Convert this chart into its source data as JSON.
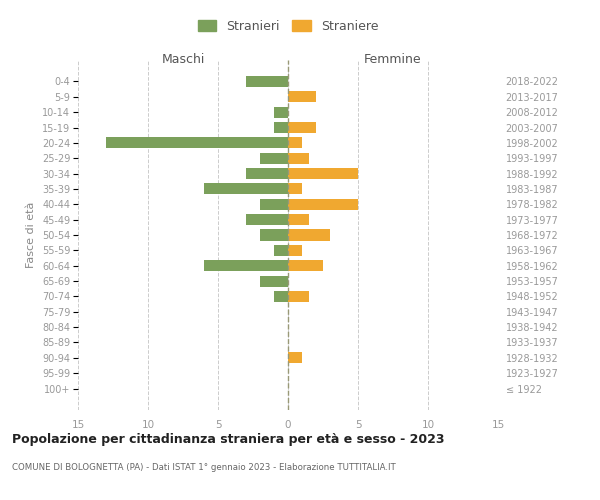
{
  "age_groups": [
    "100+",
    "95-99",
    "90-94",
    "85-89",
    "80-84",
    "75-79",
    "70-74",
    "65-69",
    "60-64",
    "55-59",
    "50-54",
    "45-49",
    "40-44",
    "35-39",
    "30-34",
    "25-29",
    "20-24",
    "15-19",
    "10-14",
    "5-9",
    "0-4"
  ],
  "birth_years": [
    "≤ 1922",
    "1923-1927",
    "1928-1932",
    "1933-1937",
    "1938-1942",
    "1943-1947",
    "1948-1952",
    "1953-1957",
    "1958-1962",
    "1963-1967",
    "1968-1972",
    "1973-1977",
    "1978-1982",
    "1983-1987",
    "1988-1992",
    "1993-1997",
    "1998-2002",
    "2003-2007",
    "2008-2012",
    "2013-2017",
    "2018-2022"
  ],
  "maschi": [
    0,
    0,
    0,
    0,
    0,
    0,
    1,
    2,
    6,
    1,
    2,
    3,
    2,
    6,
    3,
    2,
    13,
    1,
    1,
    0,
    3
  ],
  "femmine": [
    0,
    0,
    1,
    0,
    0,
    0,
    1.5,
    0,
    2.5,
    1,
    3,
    1.5,
    5,
    1,
    5,
    1.5,
    1,
    2,
    0,
    2,
    0
  ],
  "maschi_color": "#7ba05b",
  "femmine_color": "#f0a830",
  "title": "Popolazione per cittadinanza straniera per età e sesso - 2023",
  "subtitle": "COMUNE DI BOLOGNETTA (PA) - Dati ISTAT 1° gennaio 2023 - Elaborazione TUTTITALIA.IT",
  "ylabel_left": "Fasce di età",
  "xlabel_left": "Maschi",
  "xlabel_top": "Femmine",
  "legend_stranieri": "Stranieri",
  "legend_straniere": "Straniere",
  "xlim": 15,
  "background_color": "#ffffff",
  "grid_color": "#cccccc"
}
